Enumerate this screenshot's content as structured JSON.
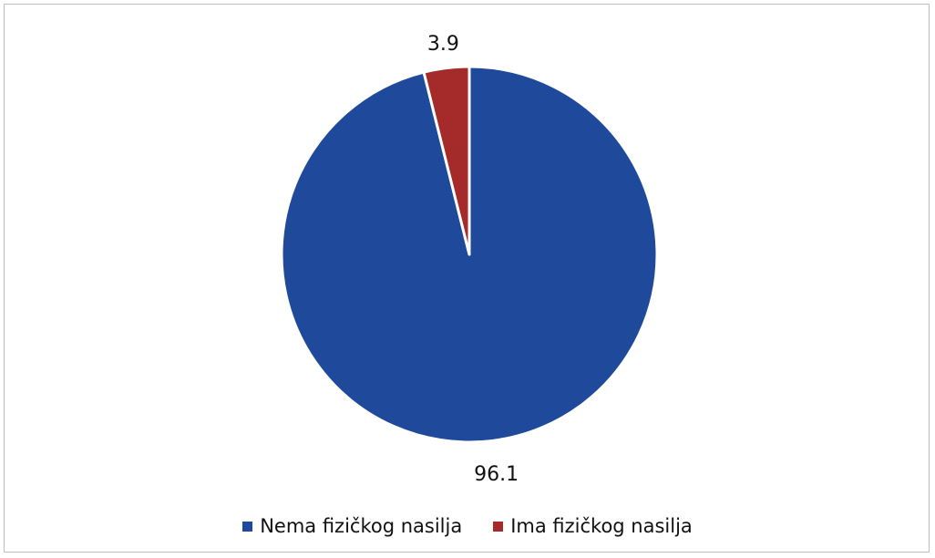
{
  "chart_data": {
    "type": "pie",
    "categories": [
      "Nema fizičkog nasilja",
      "Ima fizičkog nasilja"
    ],
    "values": [
      96.1,
      3.9
    ],
    "data_labels": [
      "96.1",
      "3.9"
    ],
    "colors": [
      "#1f4a9c",
      "#a52a2a"
    ],
    "legend": {
      "placement": "bottom",
      "entries": [
        "Nema fizičkog nasilja",
        "Ima fizičkog nasilja"
      ]
    }
  }
}
